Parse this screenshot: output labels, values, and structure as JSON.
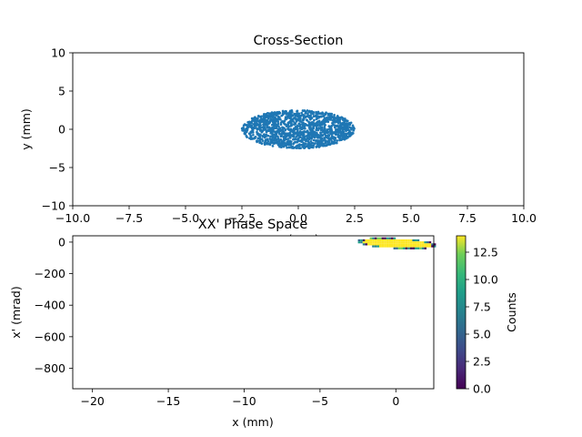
{
  "chart_data": [
    {
      "type": "scatter",
      "title": "Cross-Section",
      "xlabel": "x (mm)",
      "ylabel": "y (mm)",
      "xlim": [
        -10,
        10
      ],
      "ylim": [
        -10,
        10
      ],
      "xticks": [
        "−10.0",
        "−7.5",
        "−5.0",
        "−2.5",
        "0.0",
        "2.5",
        "5.0",
        "7.5",
        "10.0"
      ],
      "yticks": [
        "10",
        "5",
        "0",
        "−5",
        "−10"
      ],
      "color": "#1f77b4",
      "series": [
        {
          "shape": "ellipse-cloud",
          "center": [
            0,
            0
          ],
          "x_half_extent": 2.5,
          "y_half_extent": 2.5
        }
      ],
      "grid": false
    },
    {
      "type": "heatmap",
      "title": "XX' Phase Space",
      "xlabel": "x (mm)",
      "ylabel": "x' (mrad)",
      "xlim": [
        -21.3,
        2.5
      ],
      "ylim": [
        -930,
        40
      ],
      "xticks": [
        "−20",
        "−15",
        "−10",
        "−5",
        "0"
      ],
      "yticks": [
        "0",
        "−200",
        "−400",
        "−600",
        "−800"
      ],
      "colormap": "viridis",
      "colorbar": {
        "label": "Counts",
        "range": [
          0,
          14
        ],
        "ticks": [
          "0.0",
          "2.5",
          "5.0",
          "7.5",
          "10.0",
          "12.5"
        ]
      },
      "occupied_region": {
        "x_range": [
          -2.5,
          2.5
        ],
        "xprime_range": [
          -35,
          30
        ],
        "dominant_count": 14
      }
    }
  ]
}
